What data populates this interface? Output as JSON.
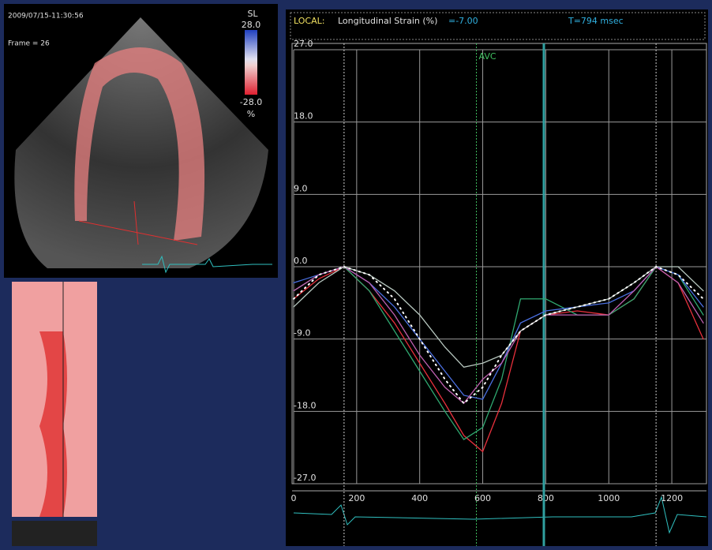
{
  "screen": {
    "timestamp": "2009/07/15-11:30:56",
    "frame": "Frame = 26",
    "colorbar": {
      "title": "SL",
      "max": "28.0",
      "min": "-28.0",
      "unit": "%"
    }
  },
  "header": {
    "mode": "LOCAL:",
    "quantity": "Longitudinal Strain (%)",
    "value": "=-7.00",
    "time": "T=794 msec"
  },
  "chart_data": {
    "type": "line",
    "x": [
      0,
      80,
      160,
      240,
      320,
      400,
      480,
      540,
      600,
      660,
      720,
      800,
      900,
      1000,
      1080,
      1150,
      1220,
      1300
    ],
    "series": [
      {
        "color": "#e8303c",
        "values": [
          -4,
          -1.5,
          0,
          -3,
          -7,
          -12,
          -17,
          -21,
          -23,
          -17,
          -8,
          -6,
          -5.5,
          -6,
          -4,
          0,
          -2,
          -9
        ]
      },
      {
        "color": "#2fa870",
        "values": [
          -3,
          -1,
          0,
          -3,
          -8,
          -13,
          -18,
          -21.5,
          -20,
          -14,
          -4,
          -4,
          -6,
          -6,
          -4,
          0,
          -1,
          -6
        ]
      },
      {
        "color": "#4a6fe0",
        "values": [
          -2,
          -1,
          0,
          -2,
          -5,
          -9,
          -13,
          -16,
          -16.5,
          -12,
          -7,
          -5.5,
          -5,
          -4.5,
          -3,
          0,
          -1,
          -5
        ]
      },
      {
        "color": "#c060b0",
        "values": [
          -3,
          -1,
          0,
          -2,
          -6,
          -11,
          -15,
          -17,
          -14,
          -12,
          -8,
          -6,
          -6,
          -6,
          -3,
          0,
          -2,
          -7
        ]
      },
      {
        "color": "#b8c8c0",
        "values": [
          -5,
          -2,
          0,
          -1,
          -3,
          -6,
          -10,
          -12.5,
          -12,
          -11,
          -8,
          -6,
          -5,
          -4,
          -2,
          0,
          0,
          -3
        ]
      },
      {
        "color": "#ffffff",
        "dotted": true,
        "values": [
          -4,
          -1,
          0,
          -1,
          -4,
          -9,
          -14,
          -17,
          -15,
          -11,
          -8,
          -6,
          -5,
          -4,
          -2,
          0,
          -1,
          -4
        ]
      }
    ],
    "xlim": [
      0,
      1310
    ],
    "xticks": [
      0,
      200,
      400,
      600,
      800,
      1000,
      1200
    ],
    "ylim": [
      -27,
      27
    ],
    "yticks": [
      {
        "value": -27,
        "label": "-27.0"
      },
      {
        "value": -18,
        "label": "-18.0"
      },
      {
        "value": -9,
        "label": "-9.0"
      },
      {
        "value": 0,
        "label": "0.0"
      },
      {
        "value": 9,
        "label": "9.0"
      },
      {
        "value": 18,
        "label": "18.0"
      },
      {
        "value": 27,
        "label": "27.0"
      }
    ],
    "grid": true,
    "markers": [
      {
        "x": 160
      },
      {
        "x": 580,
        "label": "AVC"
      },
      {
        "x": 1150
      }
    ],
    "cursor_x": 794
  }
}
